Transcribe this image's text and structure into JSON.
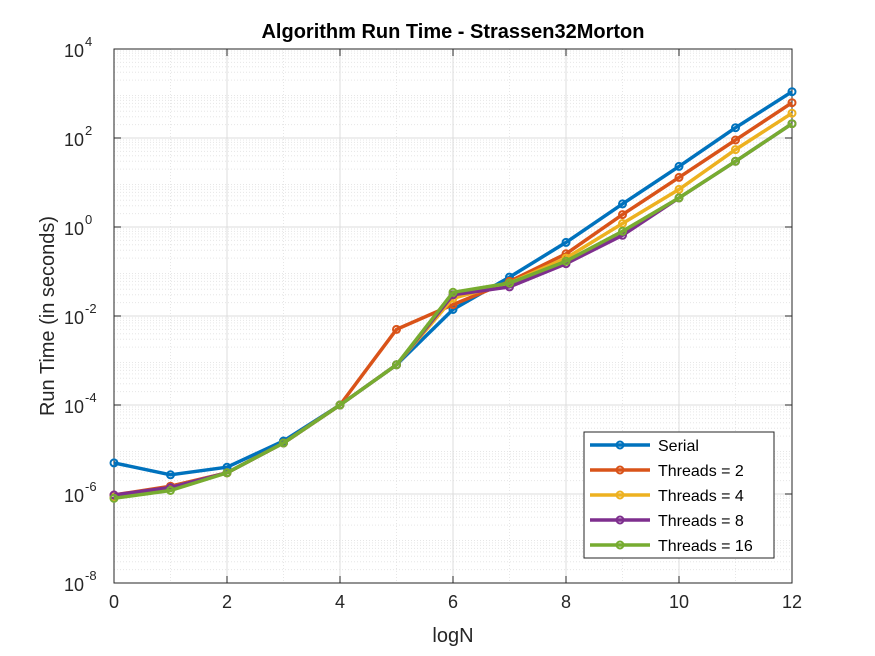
{
  "chart_data": {
    "type": "line",
    "title": "Algorithm Run Time - Strassen32Morton",
    "xlabel": "logN",
    "ylabel": "Run Time (in seconds)",
    "xlim": [
      0,
      12
    ],
    "ylim": [
      1e-08,
      10000
    ],
    "yscale": "log",
    "xticks": [
      0,
      2,
      4,
      6,
      8,
      10,
      12
    ],
    "xtick_labels": [
      "0",
      "2",
      "4",
      "6",
      "8",
      "10",
      "12"
    ],
    "yticks": [
      {
        "value": 1e-08,
        "base": "10",
        "exp": "-8"
      },
      {
        "value": 1e-06,
        "base": "10",
        "exp": "-6"
      },
      {
        "value": 0.0001,
        "base": "10",
        "exp": "-4"
      },
      {
        "value": 0.01,
        "base": "10",
        "exp": "-2"
      },
      {
        "value": 1,
        "base": "10",
        "exp": "0"
      },
      {
        "value": 100,
        "base": "10",
        "exp": "2"
      },
      {
        "value": 10000,
        "base": "10",
        "exp": "4"
      }
    ],
    "grid": true,
    "minor_grid": true,
    "legend_position": "bottom-right",
    "x": [
      0,
      1,
      2,
      3,
      4,
      5,
      6,
      7,
      8,
      9,
      10,
      12,
      11
    ],
    "series": [
      {
        "name": "Serial",
        "color": "#0072BD",
        "x": [
          0,
          1,
          2,
          3,
          4,
          5,
          6,
          7,
          8,
          9,
          10,
          11,
          12
        ],
        "values": [
          5e-06,
          2.7e-06,
          4e-06,
          1.55e-05,
          0.0001,
          0.0008,
          0.014,
          0.075,
          0.45,
          3.3,
          23,
          170,
          1100
        ]
      },
      {
        "name": "Threads = 2",
        "color": "#D95319",
        "x": [
          0,
          1,
          2,
          3,
          4,
          5,
          6,
          7,
          8,
          9,
          10,
          11,
          12
        ],
        "values": [
          9.5e-07,
          1.5e-06,
          3e-06,
          1.4e-05,
          0.0001,
          0.005,
          0.018,
          0.06,
          0.25,
          1.9,
          13,
          90,
          620
        ]
      },
      {
        "name": "Threads = 4",
        "color": "#EDB120",
        "x": [
          0,
          1,
          2,
          3,
          4,
          5,
          6,
          7,
          8,
          9,
          10,
          11,
          12
        ],
        "values": [
          8.5e-07,
          1.4e-06,
          3e-06,
          1.4e-05,
          0.0001,
          0.0008,
          0.025,
          0.055,
          0.2,
          1.2,
          7,
          55,
          360
        ]
      },
      {
        "name": "Threads = 8",
        "color": "#7E2F8E",
        "x": [
          0,
          1,
          2,
          3,
          4,
          5,
          6,
          7,
          8,
          9,
          10,
          11,
          12
        ],
        "values": [
          9.5e-07,
          1.4e-06,
          3e-06,
          1.4e-05,
          0.0001,
          0.0008,
          0.03,
          0.045,
          0.15,
          0.65,
          4.5,
          30,
          210
        ]
      },
      {
        "name": "Threads = 16",
        "color": "#77AC30",
        "x": [
          0,
          1,
          2,
          3,
          4,
          5,
          6,
          7,
          8,
          9,
          10,
          11,
          12
        ],
        "values": [
          8e-07,
          1.2e-06,
          3e-06,
          1.4e-05,
          0.0001,
          0.0008,
          0.034,
          0.055,
          0.17,
          0.8,
          4.5,
          30,
          210
        ]
      }
    ]
  }
}
